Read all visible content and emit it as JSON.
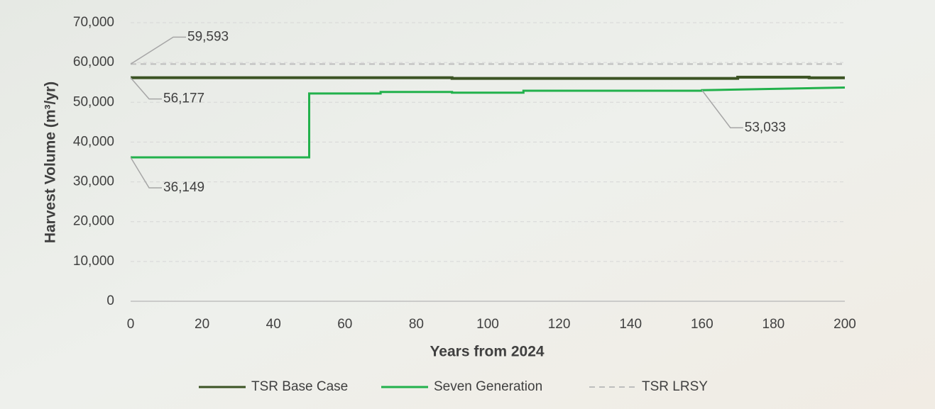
{
  "chart_data": {
    "type": "line",
    "x_label": "Years from 2024",
    "y_label": "Harvest Volume (m³/yr)",
    "xlim": [
      0,
      200
    ],
    "xticks": [
      0,
      20,
      40,
      60,
      80,
      100,
      120,
      140,
      160,
      180,
      200
    ],
    "ylim": [
      0,
      70000
    ],
    "yticks": [
      0,
      {
        "value": 10000,
        "label": "10,000"
      },
      {
        "value": 20000,
        "label": "20,000"
      },
      {
        "value": 30000,
        "label": "30,000"
      },
      {
        "value": 40000,
        "label": "40,000"
      },
      {
        "value": 50000,
        "label": "50,000"
      },
      {
        "value": 60000,
        "label": "60,000"
      },
      {
        "value": 70000,
        "label": "70,000"
      }
    ],
    "grid": true,
    "legend": "bottom",
    "series": [
      {
        "name": "TSR Base Case",
        "color": "#3b5323",
        "x": [
          0,
          90,
          90,
          170,
          170,
          190,
          190,
          200
        ],
        "values": [
          56177,
          56177,
          56000,
          56000,
          56300,
          56300,
          56150,
          56150
        ]
      },
      {
        "name": "Seven Generation",
        "color": "#22b14c",
        "x": [
          0,
          50,
          50,
          70,
          70,
          90,
          90,
          110,
          110,
          160,
          160,
          200
        ],
        "values": [
          36149,
          36149,
          52200,
          52200,
          52600,
          52600,
          52400,
          52400,
          52900,
          52900,
          53033,
          53700
        ]
      },
      {
        "name": "TSR LRSY",
        "color": "#bdbdbd",
        "dashed": true,
        "x": [
          0,
          200
        ],
        "values": [
          59593,
          59593
        ]
      }
    ],
    "annotations": [
      {
        "label": "59,593",
        "value": 59593,
        "x": 0
      },
      {
        "label": "56,177",
        "value": 56177,
        "x": 0
      },
      {
        "label": "36,149",
        "value": 36149,
        "x": 0
      },
      {
        "label": "53,033",
        "value": 53033,
        "x": 160
      }
    ]
  }
}
